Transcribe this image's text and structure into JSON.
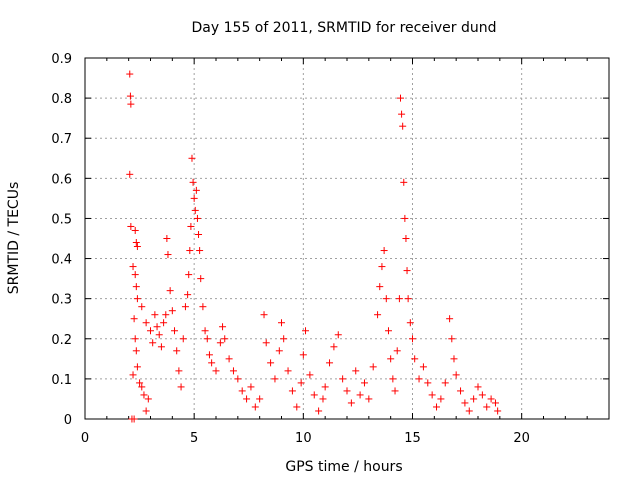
{
  "chart_data": {
    "type": "scatter",
    "title": "Day 155 of 2011, SRMTID for receiver dund",
    "xlabel": "GPS time / hours",
    "ylabel": "SRMTID / TECUs",
    "xlim": [
      0,
      24
    ],
    "ylim": [
      0,
      0.9
    ],
    "x_ticks": [
      0,
      5,
      10,
      15,
      20
    ],
    "y_ticks": [
      0,
      0.1,
      0.2,
      0.3,
      0.4,
      0.5,
      0.6,
      0.7,
      0.8,
      0.9
    ],
    "x_tick_labels": [
      "0",
      "5",
      "10",
      "15",
      "20"
    ],
    "y_tick_labels": [
      "0",
      "0.1",
      "0.2",
      "0.3",
      "0.4",
      "0.5",
      "0.6",
      "0.7",
      "0.8",
      "0.9"
    ],
    "grid": true,
    "marker": "+",
    "color": "#ff0000",
    "series": [
      {
        "name": "SRMTID",
        "points": [
          [
            2.05,
            0.86
          ],
          [
            2.08,
            0.805
          ],
          [
            2.1,
            0.785
          ],
          [
            2.05,
            0.61
          ],
          [
            2.1,
            0.48
          ],
          [
            2.3,
            0.47
          ],
          [
            2.35,
            0.44
          ],
          [
            2.4,
            0.43
          ],
          [
            2.2,
            0.38
          ],
          [
            2.3,
            0.36
          ],
          [
            2.35,
            0.33
          ],
          [
            2.4,
            0.3
          ],
          [
            2.25,
            0.25
          ],
          [
            2.3,
            0.2
          ],
          [
            2.35,
            0.17
          ],
          [
            2.4,
            0.13
          ],
          [
            2.2,
            0.11
          ],
          [
            2.5,
            0.09
          ],
          [
            2.15,
            0.0
          ],
          [
            2.25,
            0.0
          ],
          [
            2.6,
            0.08
          ],
          [
            2.7,
            0.06
          ],
          [
            2.8,
            0.02
          ],
          [
            2.9,
            0.05
          ],
          [
            2.6,
            0.28
          ],
          [
            2.8,
            0.24
          ],
          [
            3.0,
            0.22
          ],
          [
            3.1,
            0.19
          ],
          [
            3.2,
            0.26
          ],
          [
            3.3,
            0.23
          ],
          [
            3.4,
            0.21
          ],
          [
            3.5,
            0.18
          ],
          [
            3.6,
            0.24
          ],
          [
            3.7,
            0.26
          ],
          [
            3.75,
            0.45
          ],
          [
            3.8,
            0.41
          ],
          [
            3.9,
            0.32
          ],
          [
            4.0,
            0.27
          ],
          [
            4.1,
            0.22
          ],
          [
            4.2,
            0.17
          ],
          [
            4.3,
            0.12
          ],
          [
            4.4,
            0.08
          ],
          [
            4.5,
            0.2
          ],
          [
            4.6,
            0.28
          ],
          [
            4.7,
            0.31
          ],
          [
            4.75,
            0.36
          ],
          [
            4.8,
            0.42
          ],
          [
            4.85,
            0.48
          ],
          [
            4.9,
            0.65
          ],
          [
            4.95,
            0.59
          ],
          [
            5.0,
            0.55
          ],
          [
            5.05,
            0.52
          ],
          [
            5.1,
            0.57
          ],
          [
            5.15,
            0.5
          ],
          [
            5.2,
            0.46
          ],
          [
            5.25,
            0.42
          ],
          [
            5.3,
            0.35
          ],
          [
            5.4,
            0.28
          ],
          [
            5.5,
            0.22
          ],
          [
            5.6,
            0.2
          ],
          [
            5.7,
            0.16
          ],
          [
            5.8,
            0.14
          ],
          [
            6.0,
            0.12
          ],
          [
            6.2,
            0.19
          ],
          [
            6.3,
            0.23
          ],
          [
            6.4,
            0.2
          ],
          [
            6.6,
            0.15
          ],
          [
            6.8,
            0.12
          ],
          [
            7.0,
            0.1
          ],
          [
            7.2,
            0.07
          ],
          [
            7.4,
            0.05
          ],
          [
            7.6,
            0.08
          ],
          [
            7.8,
            0.03
          ],
          [
            8.0,
            0.05
          ],
          [
            8.2,
            0.26
          ],
          [
            8.3,
            0.19
          ],
          [
            8.5,
            0.14
          ],
          [
            8.7,
            0.1
          ],
          [
            8.9,
            0.17
          ],
          [
            9.0,
            0.24
          ],
          [
            9.1,
            0.2
          ],
          [
            9.3,
            0.12
          ],
          [
            9.5,
            0.07
          ],
          [
            9.7,
            0.03
          ],
          [
            9.9,
            0.09
          ],
          [
            10.0,
            0.16
          ],
          [
            10.1,
            0.22
          ],
          [
            10.3,
            0.11
          ],
          [
            10.5,
            0.06
          ],
          [
            10.7,
            0.02
          ],
          [
            10.9,
            0.05
          ],
          [
            11.0,
            0.08
          ],
          [
            11.2,
            0.14
          ],
          [
            11.4,
            0.18
          ],
          [
            11.6,
            0.21
          ],
          [
            11.8,
            0.1
          ],
          [
            12.0,
            0.07
          ],
          [
            12.2,
            0.04
          ],
          [
            12.4,
            0.12
          ],
          [
            12.6,
            0.06
          ],
          [
            12.8,
            0.09
          ],
          [
            13.0,
            0.05
          ],
          [
            13.2,
            0.13
          ],
          [
            13.4,
            0.26
          ],
          [
            13.5,
            0.33
          ],
          [
            13.6,
            0.38
          ],
          [
            13.7,
            0.42
          ],
          [
            13.8,
            0.3
          ],
          [
            13.9,
            0.22
          ],
          [
            14.0,
            0.15
          ],
          [
            14.1,
            0.1
          ],
          [
            14.2,
            0.07
          ],
          [
            14.3,
            0.17
          ],
          [
            14.4,
            0.3
          ],
          [
            14.45,
            0.8
          ],
          [
            14.5,
            0.76
          ],
          [
            14.55,
            0.73
          ],
          [
            14.6,
            0.59
          ],
          [
            14.65,
            0.5
          ],
          [
            14.7,
            0.45
          ],
          [
            14.75,
            0.37
          ],
          [
            14.8,
            0.3
          ],
          [
            14.9,
            0.24
          ],
          [
            15.0,
            0.2
          ],
          [
            15.1,
            0.15
          ],
          [
            15.3,
            0.1
          ],
          [
            15.5,
            0.13
          ],
          [
            15.7,
            0.09
          ],
          [
            15.9,
            0.06
          ],
          [
            16.1,
            0.03
          ],
          [
            16.3,
            0.05
          ],
          [
            16.5,
            0.09
          ],
          [
            16.7,
            0.25
          ],
          [
            16.8,
            0.2
          ],
          [
            16.9,
            0.15
          ],
          [
            17.0,
            0.11
          ],
          [
            17.2,
            0.07
          ],
          [
            17.4,
            0.04
          ],
          [
            17.6,
            0.02
          ],
          [
            17.8,
            0.05
          ],
          [
            18.0,
            0.08
          ],
          [
            18.2,
            0.06
          ],
          [
            18.4,
            0.03
          ],
          [
            18.6,
            0.05
          ],
          [
            18.8,
            0.04
          ],
          [
            18.9,
            0.02
          ]
        ]
      }
    ]
  }
}
